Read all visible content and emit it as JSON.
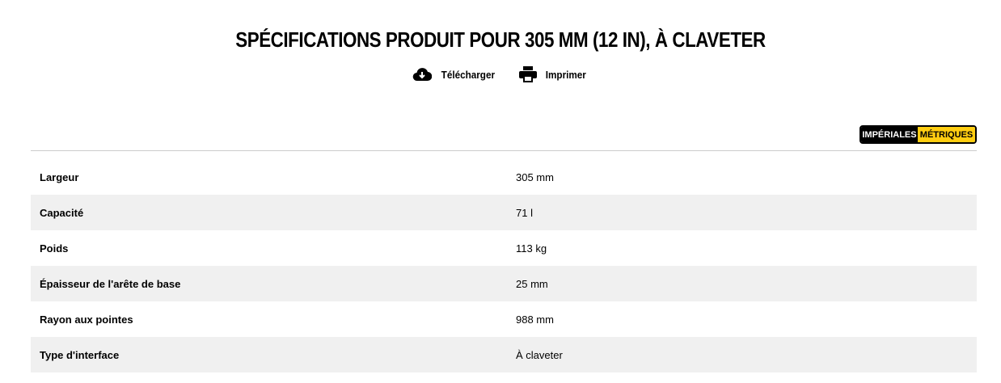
{
  "title": "SPÉCIFICATIONS PRODUIT POUR 305 MM (12 IN), À CLAVETER",
  "actions": {
    "download": "Télécharger",
    "print": "Imprimer"
  },
  "units": {
    "imperial": "IMPÉRIALES",
    "metric": "MÉTRIQUES",
    "selected": "metric",
    "accent": "#ffcd11"
  },
  "specs": [
    {
      "label": "Largeur",
      "value": "305 mm"
    },
    {
      "label": "Capacité",
      "value": "71 l"
    },
    {
      "label": "Poids",
      "value": "113 kg"
    },
    {
      "label": "Épaisseur de l'arête de base",
      "value": "25 mm"
    },
    {
      "label": "Rayon aux pointes",
      "value": "988 mm"
    },
    {
      "label": "Type d'interface",
      "value": "À claveter"
    }
  ]
}
